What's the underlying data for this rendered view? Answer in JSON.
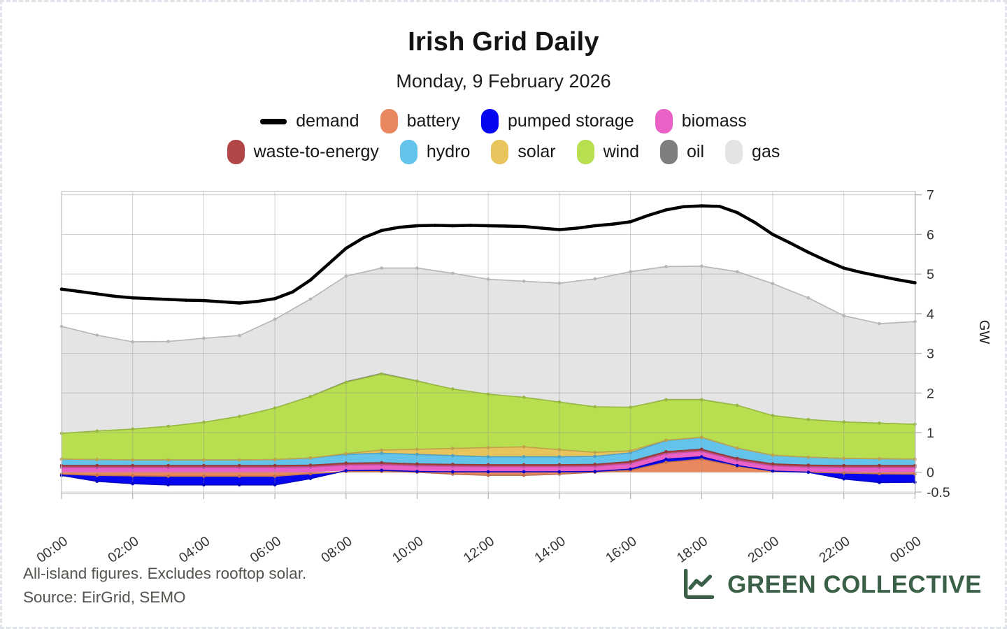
{
  "card": {
    "background": "#ffffff",
    "border_color": "#e1e3ea"
  },
  "header": {
    "title": "Irish Grid Daily",
    "subtitle": "Monday, 9 February 2026"
  },
  "footer": {
    "note_line1": "All-island figures. Excludes rooftop solar.",
    "note_line2": "Source: EirGrid, SEMO"
  },
  "brand": {
    "name": "GREEN COLLECTIVE",
    "color": "#3a6147",
    "icon": "line-chart-icon"
  },
  "chart_data": {
    "type": "area",
    "stacked": true,
    "title": "Irish Grid Daily",
    "subtitle": "Monday, 9 February 2026",
    "ylabel": "GW",
    "ylim": [
      -0.5,
      7
    ],
    "y_ticks": [
      7,
      6,
      5,
      4,
      3,
      2,
      1,
      0,
      -0.5
    ],
    "x_hours": [
      0,
      1,
      2,
      3,
      4,
      5,
      6,
      7,
      8,
      9,
      10,
      11,
      12,
      13,
      14,
      15,
      16,
      17,
      18,
      19,
      20,
      21,
      22,
      23,
      24
    ],
    "x_tick_labels": [
      "00:00",
      "02:00",
      "04:00",
      "06:00",
      "08:00",
      "10:00",
      "12:00",
      "14:00",
      "16:00",
      "18:00",
      "20:00",
      "22:00",
      "00:00"
    ],
    "grid": true,
    "legend_position": "top",
    "units": "GW",
    "demand": {
      "label": "demand",
      "color": "#000000",
      "x_step_hours": 0.5,
      "values": [
        4.62,
        4.56,
        4.5,
        4.44,
        4.4,
        4.38,
        4.36,
        4.34,
        4.33,
        4.3,
        4.27,
        4.31,
        4.38,
        4.55,
        4.85,
        5.25,
        5.65,
        5.92,
        6.1,
        6.18,
        6.22,
        6.23,
        6.22,
        6.23,
        6.22,
        6.21,
        6.2,
        6.16,
        6.12,
        6.16,
        6.22,
        6.26,
        6.32,
        6.48,
        6.62,
        6.7,
        6.72,
        6.71,
        6.55,
        6.3,
        6.0,
        5.78,
        5.55,
        5.34,
        5.15,
        5.04,
        4.95,
        4.86,
        4.78
      ]
    },
    "series": [
      {
        "key": "battery",
        "label": "battery",
        "color": "#e9885f",
        "values": [
          -0.05,
          -0.08,
          -0.09,
          -0.1,
          -0.1,
          -0.1,
          -0.1,
          -0.04,
          0.02,
          0.02,
          0.0,
          -0.05,
          -0.08,
          -0.08,
          -0.05,
          0.0,
          0.05,
          0.25,
          0.33,
          0.15,
          0.03,
          0.0,
          -0.02,
          -0.04,
          -0.05
        ]
      },
      {
        "key": "pumped-storage",
        "label": "pumped storage",
        "color": "#0505f0",
        "values": [
          -0.03,
          -0.15,
          -0.2,
          -0.22,
          -0.22,
          -0.22,
          -0.22,
          -0.12,
          0.02,
          0.03,
          0.02,
          0.01,
          0.01,
          0.01,
          0.01,
          0.02,
          0.03,
          0.08,
          0.06,
          0.02,
          0.0,
          0.0,
          -0.15,
          -0.22,
          -0.2
        ]
      },
      {
        "key": "biomass",
        "label": "biomass",
        "color": "#ea61c6",
        "values": [
          0.12,
          0.12,
          0.12,
          0.12,
          0.12,
          0.12,
          0.12,
          0.13,
          0.14,
          0.14,
          0.14,
          0.14,
          0.13,
          0.13,
          0.13,
          0.13,
          0.14,
          0.14,
          0.14,
          0.13,
          0.13,
          0.13,
          0.12,
          0.12,
          0.12
        ]
      },
      {
        "key": "waste-to-energy",
        "label": "waste-to-energy",
        "color": "#b24646",
        "values": [
          0.05,
          0.05,
          0.05,
          0.05,
          0.05,
          0.05,
          0.05,
          0.05,
          0.05,
          0.05,
          0.05,
          0.05,
          0.05,
          0.05,
          0.05,
          0.05,
          0.05,
          0.05,
          0.05,
          0.05,
          0.05,
          0.05,
          0.05,
          0.05,
          0.05
        ]
      },
      {
        "key": "hydro",
        "label": "hydro",
        "color": "#63c3eb",
        "values": [
          0.16,
          0.15,
          0.14,
          0.14,
          0.14,
          0.14,
          0.15,
          0.18,
          0.22,
          0.24,
          0.24,
          0.22,
          0.2,
          0.2,
          0.2,
          0.2,
          0.22,
          0.28,
          0.3,
          0.26,
          0.22,
          0.2,
          0.18,
          0.17,
          0.16
        ]
      },
      {
        "key": "solar",
        "label": "solar",
        "color": "#e8c45c",
        "values": [
          0,
          0,
          0,
          0,
          0,
          0,
          0,
          0,
          0.02,
          0.08,
          0.13,
          0.18,
          0.23,
          0.25,
          0.18,
          0.1,
          0.05,
          0.01,
          0,
          0,
          0,
          0,
          0,
          0,
          0
        ]
      },
      {
        "key": "wind",
        "label": "wind",
        "color": "#b7df4f",
        "values": [
          0.65,
          0.72,
          0.78,
          0.85,
          0.95,
          1.1,
          1.3,
          1.55,
          1.8,
          1.92,
          1.72,
          1.5,
          1.35,
          1.25,
          1.2,
          1.15,
          1.1,
          1.02,
          0.95,
          1.08,
          1.0,
          0.95,
          0.92,
          0.9,
          0.88
        ]
      },
      {
        "key": "oil",
        "label": "oil",
        "color": "#7e7e7e",
        "values": [
          0,
          0,
          0,
          0,
          0,
          0,
          0.01,
          0.02,
          0.03,
          0.03,
          0.02,
          0.01,
          0.01,
          0.01,
          0.01,
          0.01,
          0.01,
          0.02,
          0.02,
          0.01,
          0.01,
          0,
          0,
          0,
          0
        ]
      },
      {
        "key": "gas",
        "label": "gas",
        "color": "#e4e4e4",
        "values": [
          2.7,
          2.42,
          2.2,
          2.14,
          2.12,
          2.04,
          2.23,
          2.44,
          2.65,
          2.64,
          2.83,
          2.91,
          2.89,
          2.92,
          2.99,
          3.22,
          3.41,
          3.34,
          3.35,
          3.36,
          3.32,
          3.07,
          2.68,
          2.51,
          2.59
        ]
      }
    ]
  }
}
